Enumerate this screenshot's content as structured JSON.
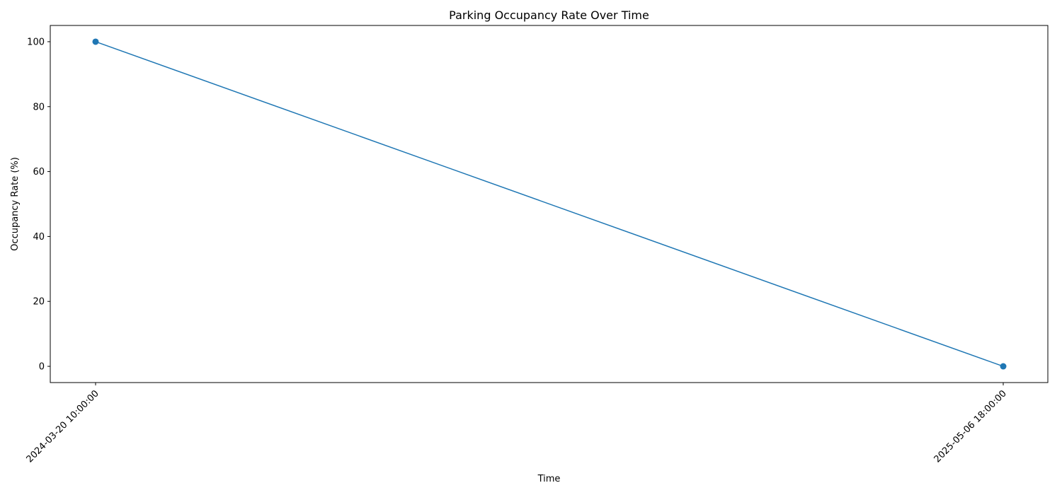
{
  "chart_data": {
    "type": "line",
    "title": "Parking Occupancy Rate Over Time",
    "xlabel": "Time",
    "ylabel": "Occupancy Rate (%)",
    "categories": [
      "2024-03-20 10:00:00",
      "2025-05-06 18:00:00"
    ],
    "series": [
      {
        "values": [
          100,
          0
        ],
        "color": "#1f77b4",
        "marker": "circle"
      }
    ],
    "yticks": [
      0,
      20,
      40,
      60,
      80,
      100
    ],
    "ylim": [
      -5,
      105
    ],
    "grid": false,
    "legend": "none"
  }
}
